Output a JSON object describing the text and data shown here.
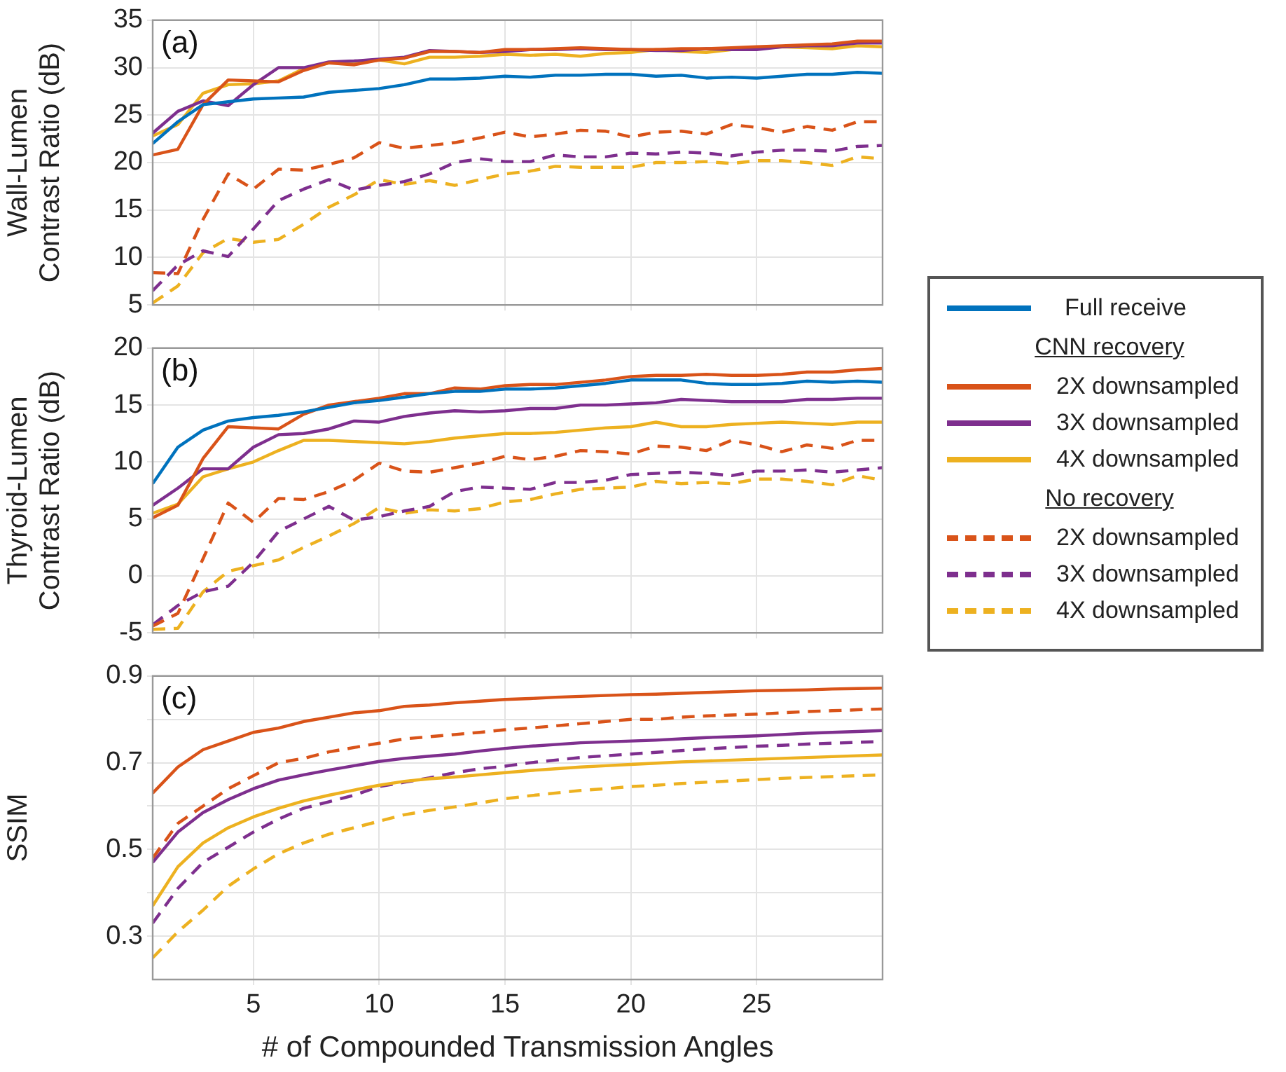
{
  "chart_data": [
    {
      "type": "line",
      "title": "(a)",
      "ylabel": "Wall-Lumen\nContrast Ratio (dB)",
      "legend": "right",
      "annotations": [
        "CNN recovery",
        "No recovery"
      ],
      "grid": true,
      "marker": "none",
      "tick_labels": "y",
      "x": [
        1,
        2,
        3,
        4,
        5,
        6,
        7,
        8,
        9,
        10,
        11,
        12,
        13,
        14,
        15,
        16,
        17,
        18,
        19,
        20,
        21,
        22,
        23,
        24,
        25,
        26,
        27,
        28,
        29,
        30
      ],
      "xlim": [
        1,
        30
      ],
      "xticks": [
        5,
        10,
        15,
        20,
        25
      ],
      "ylim": [
        5,
        35
      ],
      "yticks": [
        5,
        10,
        15,
        20,
        25,
        30,
        35
      ],
      "series": [
        {
          "name": "Full receive",
          "color": "#0072bd",
          "line_style": "solid",
          "values": [
            22,
            24.3,
            26.1,
            26.4,
            26.7,
            26.8,
            26.9,
            27.4,
            27.6,
            27.8,
            28.2,
            28.8,
            28.8,
            28.9,
            29.1,
            29,
            29.2,
            29.2,
            29.3,
            29.3,
            29.1,
            29.2,
            28.9,
            29,
            28.9,
            29.1,
            29.3,
            29.3,
            29.5,
            29.4
          ]
        },
        {
          "name": "2X downsampled",
          "color": "#d95319",
          "line_style": "solid",
          "values": [
            20.8,
            21.4,
            26.1,
            28.7,
            28.6,
            28.5,
            29.7,
            30.5,
            30.3,
            30.8,
            31,
            31.7,
            31.7,
            31.6,
            31.9,
            31.9,
            32,
            32.1,
            32,
            31.9,
            31.9,
            32,
            32,
            32.1,
            32.2,
            32.3,
            32.4,
            32.5,
            32.8,
            32.8
          ]
        },
        {
          "name": "3X downsampled",
          "color": "#7e2f8e",
          "line_style": "solid",
          "values": [
            23.1,
            25.4,
            26.5,
            26,
            28.2,
            30,
            30,
            30.6,
            30.7,
            30.9,
            31.1,
            31.8,
            31.7,
            31.6,
            31.7,
            31.9,
            31.9,
            32,
            31.9,
            31.9,
            31.8,
            31.8,
            32,
            31.9,
            31.9,
            32.2,
            32.3,
            32.3,
            32.6,
            32.6
          ]
        },
        {
          "name": "4X downsampled",
          "color": "#edb120",
          "line_style": "solid",
          "values": [
            22.8,
            24,
            27.3,
            28.2,
            28.3,
            28.6,
            29.9,
            30.5,
            30.5,
            30.8,
            30.4,
            31.1,
            31.1,
            31.2,
            31.4,
            31.3,
            31.4,
            31.2,
            31.5,
            31.6,
            31.9,
            31.7,
            31.6,
            31.9,
            32,
            32.2,
            32.1,
            32,
            32.3,
            32.2
          ]
        },
        {
          "name": "2X downsampled",
          "color": "#d95319",
          "line_style": "dashed",
          "values": [
            8.4,
            8.3,
            14,
            18.8,
            17.2,
            19.3,
            19.2,
            19.8,
            20.5,
            22.1,
            21.5,
            21.8,
            22.1,
            22.6,
            23.2,
            22.7,
            23,
            23.4,
            23.3,
            22.7,
            23.2,
            23.3,
            23,
            24,
            23.7,
            23.2,
            23.8,
            23.4,
            24.3,
            24.3
          ]
        },
        {
          "name": "3X downsampled",
          "color": "#7e2f8e",
          "line_style": "dashed",
          "values": [
            6.5,
            9.2,
            10.7,
            10.1,
            13,
            16,
            17.2,
            18.2,
            17.1,
            17.6,
            18,
            18.8,
            20,
            20.4,
            20.1,
            20.1,
            20.8,
            20.6,
            20.6,
            21,
            20.9,
            21.1,
            21,
            20.7,
            21.1,
            21.3,
            21.3,
            21.2,
            21.7,
            21.8
          ]
        },
        {
          "name": "4X downsampled",
          "color": "#edb120",
          "line_style": "dashed",
          "values": [
            5.2,
            7,
            10.5,
            12,
            11.6,
            11.9,
            13.5,
            15.3,
            16.6,
            18.2,
            17.7,
            18.1,
            17.6,
            18.2,
            18.8,
            19.1,
            19.6,
            19.5,
            19.5,
            19.5,
            20,
            20,
            20.1,
            19.9,
            20.2,
            20.2,
            20,
            19.7,
            20.6,
            20.4
          ]
        }
      ]
    },
    {
      "type": "line",
      "title": "(b)",
      "ylabel": "Thyroid-Lumen\nContrast Ratio (dB)",
      "grid": true,
      "marker": "none",
      "tick_labels": "y",
      "x": [
        1,
        2,
        3,
        4,
        5,
        6,
        7,
        8,
        9,
        10,
        11,
        12,
        13,
        14,
        15,
        16,
        17,
        18,
        19,
        20,
        21,
        22,
        23,
        24,
        25,
        26,
        27,
        28,
        29,
        30
      ],
      "xlim": [
        1,
        30
      ],
      "xticks": [
        5,
        10,
        15,
        20,
        25
      ],
      "ylim": [
        -5,
        20
      ],
      "yticks": [
        -5,
        0,
        5,
        10,
        15,
        20
      ],
      "series": [
        {
          "color": "#0072bd",
          "line_style": "solid",
          "values": [
            8.1,
            11.3,
            12.8,
            13.6,
            13.9,
            14.1,
            14.4,
            14.8,
            15.2,
            15.4,
            15.7,
            16,
            16.2,
            16.2,
            16.4,
            16.4,
            16.5,
            16.7,
            16.9,
            17.2,
            17.2,
            17.2,
            16.9,
            16.8,
            16.8,
            16.9,
            17.1,
            17,
            17.1,
            17
          ]
        },
        {
          "color": "#d95319",
          "line_style": "solid",
          "values": [
            5.1,
            6.2,
            10.3,
            13.1,
            13,
            12.9,
            14.2,
            15,
            15.3,
            15.6,
            16,
            16,
            16.5,
            16.4,
            16.7,
            16.8,
            16.8,
            17,
            17.2,
            17.5,
            17.6,
            17.6,
            17.7,
            17.6,
            17.6,
            17.7,
            17.9,
            17.9,
            18.1,
            18.2
          ]
        },
        {
          "color": "#7e2f8e",
          "line_style": "solid",
          "values": [
            6.2,
            7.7,
            9.4,
            9.4,
            11.3,
            12.4,
            12.5,
            12.9,
            13.6,
            13.5,
            14,
            14.3,
            14.5,
            14.4,
            14.5,
            14.7,
            14.7,
            15,
            15,
            15.1,
            15.2,
            15.5,
            15.4,
            15.3,
            15.3,
            15.3,
            15.5,
            15.5,
            15.6,
            15.6
          ]
        },
        {
          "color": "#edb120",
          "line_style": "solid",
          "values": [
            5.5,
            6.3,
            8.7,
            9.4,
            10,
            11,
            11.9,
            11.9,
            11.8,
            11.7,
            11.6,
            11.8,
            12.1,
            12.3,
            12.5,
            12.5,
            12.6,
            12.8,
            13,
            13.1,
            13.5,
            13.1,
            13.1,
            13.3,
            13.4,
            13.5,
            13.4,
            13.3,
            13.5,
            13.5
          ]
        },
        {
          "color": "#d95319",
          "line_style": "dashed",
          "values": [
            -4.4,
            -3.3,
            1.5,
            6.4,
            4.7,
            6.8,
            6.7,
            7.4,
            8.4,
            9.9,
            9.2,
            9.1,
            9.5,
            9.9,
            10.5,
            10.2,
            10.5,
            11,
            10.9,
            10.7,
            11.4,
            11.3,
            11,
            11.9,
            11.5,
            10.9,
            11.5,
            11.2,
            11.9,
            11.9
          ]
        },
        {
          "color": "#7e2f8e",
          "line_style": "dashed",
          "values": [
            -4.3,
            -2.6,
            -1.4,
            -0.9,
            1.2,
            3.9,
            5,
            6.1,
            4.9,
            5.2,
            5.7,
            6.1,
            7.4,
            7.8,
            7.7,
            7.6,
            8.2,
            8.2,
            8.4,
            8.9,
            9,
            9.1,
            9,
            8.8,
            9.2,
            9.2,
            9.3,
            9.1,
            9.3,
            9.5
          ]
        },
        {
          "color": "#edb120",
          "line_style": "dashed",
          "values": [
            -4.7,
            -4.6,
            -1.4,
            0.4,
            0.9,
            1.4,
            2.5,
            3.5,
            4.6,
            6,
            5.5,
            5.8,
            5.7,
            5.9,
            6.5,
            6.7,
            7.2,
            7.6,
            7.7,
            7.8,
            8.3,
            8.1,
            8.2,
            8.1,
            8.5,
            8.5,
            8.3,
            8,
            8.8,
            8.4
          ]
        }
      ]
    },
    {
      "type": "line",
      "title": "(c)",
      "xlabel": "# of Compounded Transmission Angles",
      "ylabel": "SSIM",
      "grid": true,
      "marker": "none",
      "x": [
        1,
        2,
        3,
        4,
        5,
        6,
        7,
        8,
        9,
        10,
        11,
        12,
        13,
        14,
        15,
        16,
        17,
        18,
        19,
        20,
        21,
        22,
        23,
        24,
        25,
        26,
        27,
        28,
        29,
        30
      ],
      "xlim": [
        1,
        30
      ],
      "xticks": [
        5,
        10,
        15,
        20,
        25
      ],
      "ylim": [
        0.2,
        0.9
      ],
      "yticks": [
        0.3,
        {
          "value": 0.4,
          "label": null
        },
        0.5,
        {
          "value": 0.6,
          "label": null
        },
        0.7,
        {
          "value": 0.8,
          "label": null
        },
        0.9
      ],
      "series": [
        {
          "color": "#d95319",
          "line_style": "solid",
          "values": [
            0.63,
            0.69,
            0.73,
            0.75,
            0.77,
            0.78,
            0.795,
            0.805,
            0.815,
            0.82,
            0.83,
            0.833,
            0.838,
            0.842,
            0.846,
            0.848,
            0.851,
            0.853,
            0.855,
            0.857,
            0.858,
            0.86,
            0.862,
            0.864,
            0.866,
            0.867,
            0.868,
            0.87,
            0.871,
            0.872
          ]
        },
        {
          "color": "#7e2f8e",
          "line_style": "solid",
          "values": [
            0.47,
            0.54,
            0.585,
            0.615,
            0.64,
            0.66,
            0.672,
            0.683,
            0.693,
            0.703,
            0.71,
            0.715,
            0.72,
            0.727,
            0.733,
            0.738,
            0.742,
            0.746,
            0.748,
            0.75,
            0.752,
            0.755,
            0.758,
            0.76,
            0.762,
            0.765,
            0.768,
            0.77,
            0.772,
            0.774
          ]
        },
        {
          "color": "#edb120",
          "line_style": "solid",
          "values": [
            0.37,
            0.46,
            0.515,
            0.55,
            0.575,
            0.595,
            0.612,
            0.625,
            0.637,
            0.648,
            0.657,
            0.663,
            0.667,
            0.672,
            0.677,
            0.682,
            0.686,
            0.69,
            0.693,
            0.696,
            0.699,
            0.702,
            0.704,
            0.706,
            0.708,
            0.71,
            0.712,
            0.714,
            0.716,
            0.718
          ]
        },
        {
          "color": "#d95319",
          "line_style": "dashed",
          "values": [
            0.48,
            0.56,
            0.6,
            0.64,
            0.67,
            0.7,
            0.71,
            0.725,
            0.735,
            0.745,
            0.755,
            0.76,
            0.765,
            0.77,
            0.776,
            0.78,
            0.785,
            0.79,
            0.795,
            0.8,
            0.8,
            0.805,
            0.808,
            0.81,
            0.812,
            0.815,
            0.818,
            0.82,
            0.822,
            0.824
          ]
        },
        {
          "color": "#7e2f8e",
          "line_style": "dashed",
          "values": [
            0.33,
            0.41,
            0.47,
            0.505,
            0.54,
            0.57,
            0.595,
            0.61,
            0.625,
            0.645,
            0.655,
            0.665,
            0.677,
            0.686,
            0.692,
            0.7,
            0.706,
            0.712,
            0.716,
            0.72,
            0.724,
            0.728,
            0.732,
            0.735,
            0.738,
            0.74,
            0.743,
            0.745,
            0.747,
            0.749
          ]
        },
        {
          "color": "#edb120",
          "line_style": "dashed",
          "values": [
            0.25,
            0.31,
            0.36,
            0.415,
            0.455,
            0.49,
            0.515,
            0.535,
            0.55,
            0.565,
            0.58,
            0.59,
            0.598,
            0.607,
            0.617,
            0.624,
            0.63,
            0.636,
            0.64,
            0.645,
            0.648,
            0.652,
            0.655,
            0.658,
            0.661,
            0.664,
            0.666,
            0.668,
            0.67,
            0.672
          ]
        }
      ]
    }
  ]
}
